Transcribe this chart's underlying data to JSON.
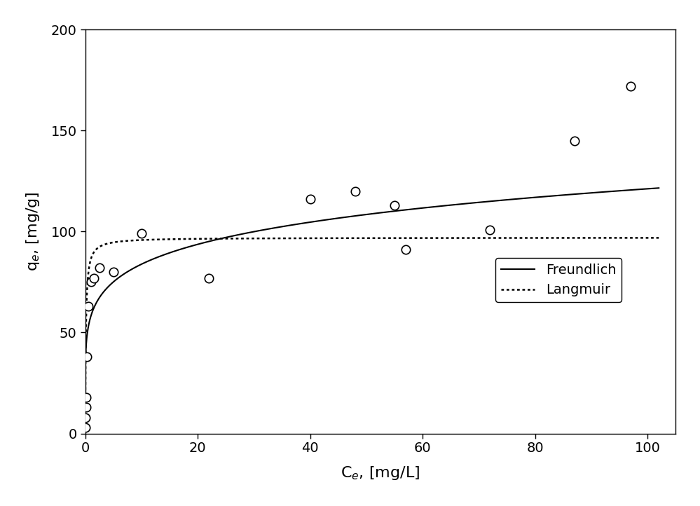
{
  "title": "",
  "xlabel": "C$_e$, [mg/L]",
  "ylabel": "q$_e$, [mg/g]",
  "xlim": [
    0,
    105
  ],
  "ylim": [
    0,
    200
  ],
  "xticks": [
    0,
    20,
    40,
    60,
    80,
    100
  ],
  "yticks": [
    0,
    50,
    100,
    150,
    200
  ],
  "scatter_x": [
    0.05,
    0.08,
    0.12,
    0.18,
    0.25,
    0.5,
    1.0,
    1.5,
    2.5,
    5.0,
    10.0,
    22.0,
    40.0,
    48.0,
    55.0,
    57.0,
    72.0,
    87.0,
    97.0
  ],
  "scatter_y": [
    3.0,
    8.0,
    13.0,
    18.0,
    38.0,
    63.0,
    75.0,
    77.0,
    82.0,
    80.0,
    99.0,
    77.0,
    116.0,
    120.0,
    113.0,
    91.0,
    101.0,
    145.0,
    172.0
  ],
  "freundlich_params": {
    "Kf": 58.0,
    "n": 0.16
  },
  "langmuir_params": {
    "qmax": 97.0,
    "KL": 8.0
  },
  "scatter_color": "black",
  "scatter_facecolor": "white",
  "scatter_size": 80,
  "freundlich_color": "black",
  "langmuir_color": "black",
  "freundlich_lw": 1.5,
  "langmuir_lw": 1.8,
  "legend_freundlich": "Freundlich",
  "legend_langmuir": "Langmuir",
  "background_color": "#ffffff",
  "fig_bg_color": "#ffffff",
  "tick_label_color": "black",
  "axis_label_color": "black"
}
